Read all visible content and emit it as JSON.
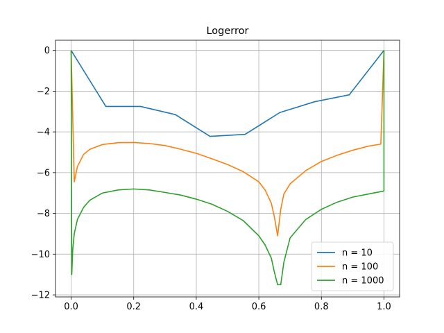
{
  "chart_data": {
    "type": "line",
    "title": "Logerror",
    "xlabel": "",
    "ylabel": "",
    "xlim": [
      -0.05,
      1.05
    ],
    "ylim": [
      -12.1,
      0.5
    ],
    "xticks": [
      0.0,
      0.2,
      0.4,
      0.6,
      0.8,
      1.0
    ],
    "xtick_labels": [
      "0.0",
      "0.2",
      "0.4",
      "0.6",
      "0.8",
      "1.0"
    ],
    "yticks": [
      0,
      -2,
      -4,
      -6,
      -8,
      -10,
      -12
    ],
    "ytick_labels": [
      "0",
      "−2",
      "−4",
      "−6",
      "−8",
      "−10",
      "−12"
    ],
    "grid": true,
    "legend_position": "lower-right",
    "series": [
      {
        "name": "n = 10",
        "color": "#1f77b4",
        "x": [
          0.0,
          0.111,
          0.222,
          0.333,
          0.444,
          0.556,
          0.667,
          0.778,
          0.889,
          1.0
        ],
        "y": [
          0.0,
          -2.75,
          -2.75,
          -3.15,
          -4.22,
          -4.12,
          -3.05,
          -2.52,
          -2.18,
          0.0
        ]
      },
      {
        "name": "n = 100",
        "color": "#ff7f0e",
        "x": [
          0.0,
          0.01,
          0.02,
          0.04,
          0.06,
          0.1,
          0.15,
          0.2,
          0.25,
          0.3,
          0.35,
          0.4,
          0.45,
          0.5,
          0.55,
          0.6,
          0.62,
          0.64,
          0.65,
          0.66,
          0.67,
          0.68,
          0.7,
          0.75,
          0.8,
          0.85,
          0.9,
          0.95,
          0.99,
          1.0
        ],
        "y": [
          0.0,
          -6.45,
          -5.7,
          -5.1,
          -4.85,
          -4.62,
          -4.53,
          -4.52,
          -4.57,
          -4.67,
          -4.85,
          -5.05,
          -5.32,
          -5.6,
          -5.95,
          -6.45,
          -6.85,
          -7.5,
          -8.2,
          -9.1,
          -7.8,
          -7.05,
          -6.55,
          -5.9,
          -5.45,
          -5.15,
          -4.9,
          -4.7,
          -4.6,
          0.0
        ]
      },
      {
        "name": "n = 1000",
        "color": "#2ca02c",
        "x": [
          0.0,
          0.002,
          0.005,
          0.01,
          0.02,
          0.04,
          0.06,
          0.1,
          0.15,
          0.2,
          0.25,
          0.3,
          0.35,
          0.4,
          0.45,
          0.5,
          0.55,
          0.6,
          0.62,
          0.64,
          0.65,
          0.66,
          0.665,
          0.67,
          0.68,
          0.7,
          0.75,
          0.8,
          0.85,
          0.9,
          0.95,
          1.0,
          1.0
        ],
        "y": [
          0.0,
          -11.0,
          -9.8,
          -9.0,
          -8.3,
          -7.7,
          -7.35,
          -7.0,
          -6.85,
          -6.8,
          -6.85,
          -6.97,
          -7.1,
          -7.3,
          -7.55,
          -7.9,
          -8.35,
          -9.1,
          -9.55,
          -10.2,
          -10.9,
          -11.5,
          -11.5,
          -11.5,
          -10.4,
          -9.2,
          -8.3,
          -7.8,
          -7.45,
          -7.2,
          -7.05,
          -6.9,
          0.0
        ]
      }
    ]
  }
}
